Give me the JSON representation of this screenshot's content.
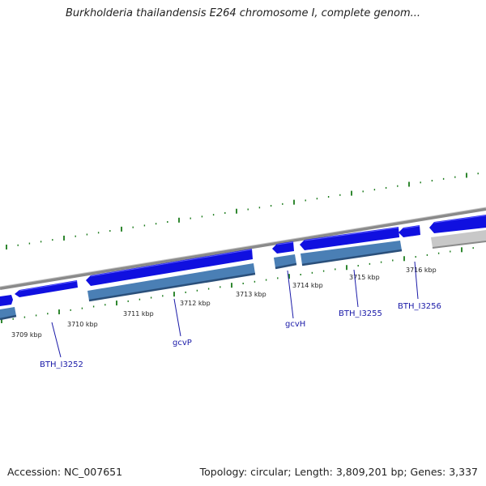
{
  "title": "Burkholderia thailandensis E264 chromosome I, complete genom...",
  "footer": {
    "accession": "Accession: NC_007651",
    "summary": "Topology: circular; Length: 3,809,201 bp; Genes: 3,337"
  },
  "colors": {
    "forward_gene": "#1010e0",
    "forward_cds": "#4a7fb5",
    "reverse_gene": "#c8c8c8",
    "backbone": "#8a8a8a",
    "tick": "#1a7a1a",
    "label": "#1a1aa8"
  },
  "kbp_labels": [
    "3709 kbp",
    "3710 kbp",
    "3711 kbp",
    "3712 kbp",
    "3713 kbp",
    "3714 kbp",
    "3715 kbp",
    "3716 kbp"
  ],
  "gene_labels": [
    "BTH_I3252",
    "gcvP",
    "gcvH",
    "BTH_I3255",
    "BTH_I3256"
  ]
}
